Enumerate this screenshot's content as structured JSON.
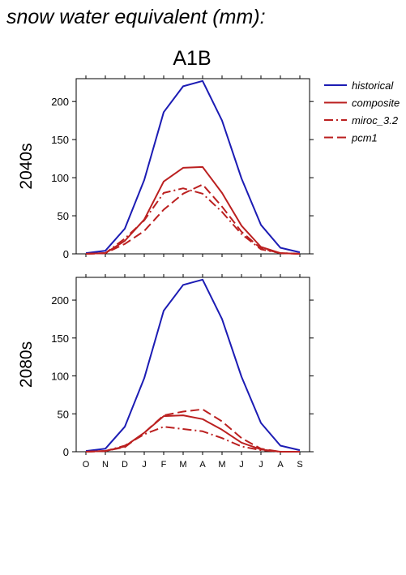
{
  "header": {
    "title": "snow water equivalent (mm):",
    "scenario": "A1B"
  },
  "colors": {
    "historical": "#1c1cb4",
    "projection": "#bb2020"
  },
  "legend": [
    {
      "label": "historical",
      "style": "solid",
      "color": "#1c1cb4"
    },
    {
      "label": "composite",
      "style": "solid",
      "color": "#bb2020"
    },
    {
      "label": "miroc_3.2",
      "style": "dashdot",
      "color": "#bb2020"
    },
    {
      "label": "pcm1",
      "style": "dashed",
      "color": "#bb2020"
    }
  ],
  "chart_data": [
    {
      "type": "line",
      "panel_label": "2040s",
      "categories": [
        "O",
        "N",
        "D",
        "J",
        "F",
        "M",
        "A",
        "M",
        "J",
        "J",
        "A",
        "S"
      ],
      "ylim": [
        0,
        230
      ],
      "yticks": [
        0,
        50,
        100,
        150,
        200
      ],
      "series": [
        {
          "name": "historical",
          "style": "solid",
          "values": [
            1,
            4,
            33,
            97,
            186,
            220,
            227,
            175,
            99,
            38,
            8,
            2
          ]
        },
        {
          "name": "composite",
          "style": "solid",
          "values": [
            0,
            1,
            17,
            45,
            95,
            113,
            114,
            80,
            37,
            9,
            1,
            0
          ]
        },
        {
          "name": "miroc_3.2",
          "style": "dashdot",
          "values": [
            0,
            1,
            20,
            44,
            80,
            86,
            79,
            55,
            26,
            6,
            1,
            0
          ]
        },
        {
          "name": "pcm1",
          "style": "dashed",
          "values": [
            0,
            1,
            13,
            30,
            58,
            79,
            91,
            62,
            29,
            7,
            1,
            0
          ]
        }
      ]
    },
    {
      "type": "line",
      "panel_label": "2080s",
      "categories": [
        "O",
        "N",
        "D",
        "J",
        "F",
        "M",
        "A",
        "M",
        "J",
        "J",
        "A",
        "S"
      ],
      "ylim": [
        0,
        230
      ],
      "yticks": [
        0,
        50,
        100,
        150,
        200
      ],
      "series": [
        {
          "name": "historical",
          "style": "solid",
          "values": [
            1,
            4,
            33,
            97,
            186,
            220,
            227,
            175,
            99,
            38,
            8,
            2
          ]
        },
        {
          "name": "composite",
          "style": "solid",
          "values": [
            0,
            1,
            7,
            25,
            47,
            48,
            43,
            29,
            12,
            3,
            0,
            0
          ]
        },
        {
          "name": "miroc_3.2",
          "style": "dashdot",
          "values": [
            0,
            1,
            8,
            23,
            33,
            30,
            27,
            18,
            7,
            2,
            0,
            0
          ]
        },
        {
          "name": "pcm1",
          "style": "dashed",
          "values": [
            0,
            1,
            6,
            25,
            48,
            53,
            56,
            40,
            18,
            4,
            0,
            0
          ]
        }
      ]
    }
  ]
}
